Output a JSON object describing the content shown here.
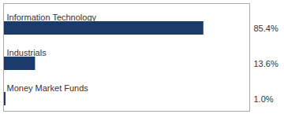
{
  "chart_data": {
    "type": "bar",
    "orientation": "horizontal",
    "categories": [
      "Information Technology",
      "Industrials",
      "Money Market Funds"
    ],
    "values": [
      85.4,
      13.6,
      1.0
    ],
    "value_labels": [
      "85.4%",
      "13.6%",
      "1.0%"
    ],
    "data_labels": true,
    "color": "#1a3a6b",
    "xlim": [
      0,
      105
    ],
    "tick_labels": false
  }
}
